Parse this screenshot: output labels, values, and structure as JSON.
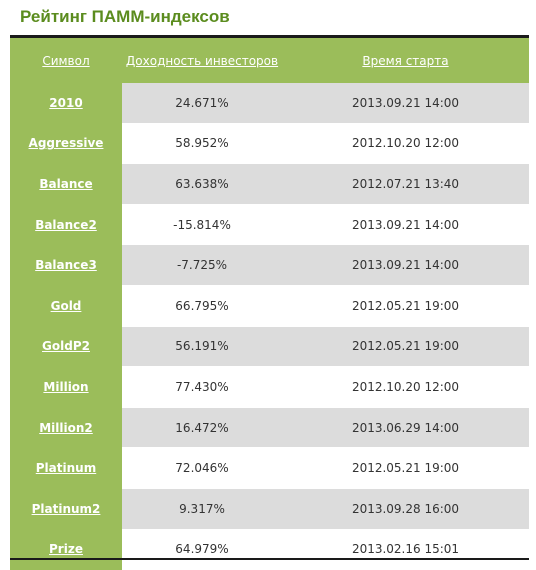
{
  "title": "Рейтинг ПАММ-индексов",
  "columns": {
    "symbol": "Символ",
    "yield": "Доходность инвесторов",
    "start": "Время старта"
  },
  "rows": [
    {
      "symbol": "2010",
      "yield": "24.671%",
      "start": "2013.09.21 14:00"
    },
    {
      "symbol": "Aggressive",
      "yield": "58.952%",
      "start": "2012.10.20 12:00"
    },
    {
      "symbol": "Balance",
      "yield": "63.638%",
      "start": "2012.07.21 13:40"
    },
    {
      "symbol": "Balance2",
      "yield": "-15.814%",
      "start": "2013.09.21 14:00"
    },
    {
      "symbol": "Balance3",
      "yield": "-7.725%",
      "start": "2013.09.21 14:00"
    },
    {
      "symbol": "Gold",
      "yield": "66.795%",
      "start": "2012.05.21 19:00"
    },
    {
      "symbol": "GoldP2",
      "yield": "56.191%",
      "start": "2012.05.21 19:00"
    },
    {
      "symbol": "Million",
      "yield": "77.430%",
      "start": "2012.10.20 12:00"
    },
    {
      "symbol": "Million2",
      "yield": "16.472%",
      "start": "2013.06.29 14:00"
    },
    {
      "symbol": "Platinum",
      "yield": "72.046%",
      "start": "2012.05.21 19:00"
    },
    {
      "symbol": "Platinum2",
      "yield": "9.317%",
      "start": "2013.09.28 16:00"
    },
    {
      "symbol": "Prize",
      "yield": "64.979%",
      "start": "2013.02.16 15:01"
    }
  ],
  "colors": {
    "title": "#5b8c1e",
    "accent_green": "#9bbd5a",
    "row_stripe": "#dcdcdc"
  }
}
